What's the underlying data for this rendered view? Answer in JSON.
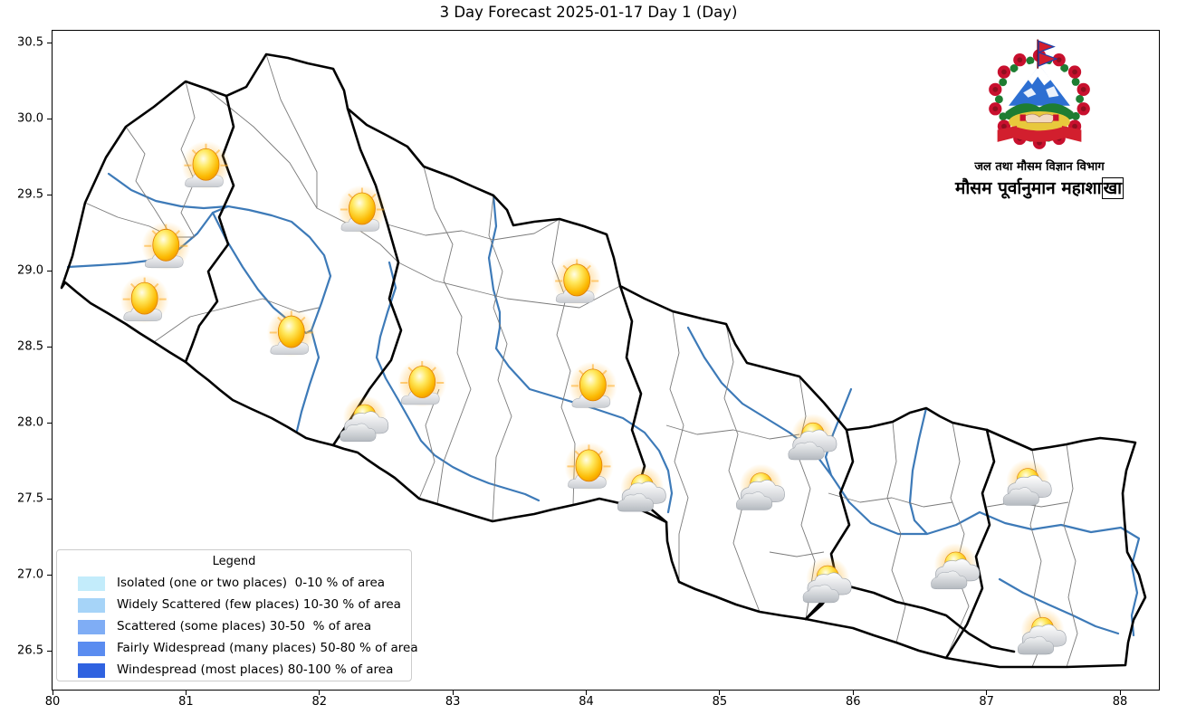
{
  "title": "3 Day Forecast 2025-01-17 Day 1 (Day)",
  "axes": {
    "x_ticks": [
      "80",
      "81",
      "82",
      "83",
      "84",
      "85",
      "86",
      "87",
      "88"
    ],
    "y_ticks": [
      "30.5",
      "30.0",
      "29.5",
      "29.0",
      "28.5",
      "28.0",
      "27.5",
      "27.0",
      "26.5"
    ]
  },
  "legend": {
    "title": "Legend",
    "items": [
      {
        "label": "Isolated (one or two places)  0-10 % of area",
        "color": "#c3ecfb"
      },
      {
        "label": "Widely Scattered (few places) 10-30 % of area",
        "color": "#a6d4f8"
      },
      {
        "label": "Scattered (some places) 30-50  % of area",
        "color": "#7fadf5"
      },
      {
        "label": "Fairly Widespread (many places) 50-80 % of area",
        "color": "#5a8cf0"
      },
      {
        "label": "Windespread (most places) 80-100 % of area",
        "color": "#2f62e0"
      }
    ]
  },
  "logo": {
    "line1": "जल तथा मौसम विज्ञान विभाग",
    "line2_prefix": "मौसम पूर्वानुमान महाशा",
    "line2_boxed": "खा"
  },
  "map": {
    "colors": {
      "national_border": "#000000",
      "district_border": "#7a7a7a",
      "river": "#3d7ab8",
      "sun_core": "#fcba03",
      "cloud_gray": "#c9ccd1"
    },
    "icons": [
      {
        "type": "mostly-sunny",
        "lon": 81.15,
        "lat": 29.68
      },
      {
        "type": "mostly-sunny",
        "lon": 82.32,
        "lat": 29.39
      },
      {
        "type": "mostly-sunny",
        "lon": 80.85,
        "lat": 29.15
      },
      {
        "type": "mostly-sunny",
        "lon": 80.69,
        "lat": 28.8
      },
      {
        "type": "mostly-sunny",
        "lon": 81.79,
        "lat": 28.58
      },
      {
        "type": "mostly-sunny",
        "lon": 83.93,
        "lat": 28.92
      },
      {
        "type": "mostly-sunny",
        "lon": 82.77,
        "lat": 28.25
      },
      {
        "type": "mostly-sunny",
        "lon": 84.05,
        "lat": 28.23
      },
      {
        "type": "mostly-sunny",
        "lon": 84.02,
        "lat": 27.7
      },
      {
        "type": "partly-cloudy",
        "lon": 82.34,
        "lat": 28.0
      },
      {
        "type": "partly-cloudy",
        "lon": 84.42,
        "lat": 27.54
      },
      {
        "type": "partly-cloudy",
        "lon": 85.31,
        "lat": 27.55
      },
      {
        "type": "partly-cloudy",
        "lon": 85.7,
        "lat": 27.88
      },
      {
        "type": "partly-cloudy",
        "lon": 87.31,
        "lat": 27.58
      },
      {
        "type": "partly-cloudy",
        "lon": 85.81,
        "lat": 26.94
      },
      {
        "type": "partly-cloudy",
        "lon": 86.77,
        "lat": 27.03
      },
      {
        "type": "partly-cloudy",
        "lon": 87.42,
        "lat": 26.6
      }
    ]
  }
}
